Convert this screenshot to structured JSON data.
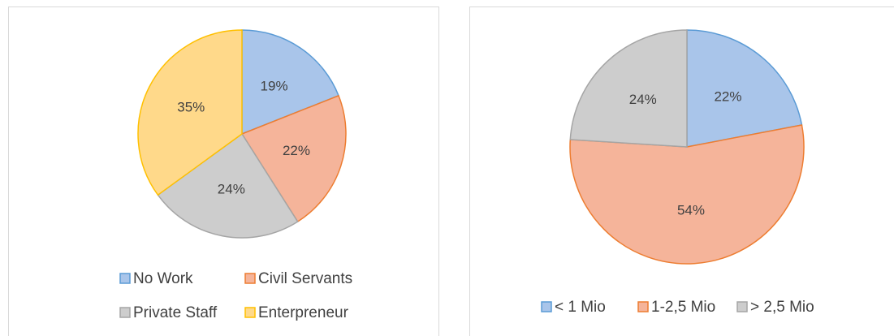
{
  "chart_data": [
    {
      "type": "pie",
      "categories": [
        "No Work",
        "Civil Servants",
        "Private Staff",
        "Enterpreneur"
      ],
      "values": [
        19,
        22,
        24,
        35
      ],
      "value_labels": [
        "19%",
        "22%",
        "24%",
        "35%"
      ],
      "colors": [
        "#a9c5ea",
        "#f5b49a",
        "#cdcdcd",
        "#ffd98a"
      ],
      "edge_colors": [
        "#5b9bd5",
        "#ed7d31",
        "#a5a5a5",
        "#ffc000"
      ],
      "legend": "bottom"
    },
    {
      "type": "pie",
      "categories": [
        "< 1 Mio",
        "1-2,5 Mio",
        "> 2,5 Mio"
      ],
      "values": [
        22,
        54,
        24
      ],
      "value_labels": [
        "22%",
        "54%",
        "24%"
      ],
      "colors": [
        "#a9c5ea",
        "#f5b49a",
        "#cdcdcd"
      ],
      "edge_colors": [
        "#5b9bd5",
        "#ed7d31",
        "#a5a5a5"
      ],
      "legend": "bottom"
    }
  ]
}
